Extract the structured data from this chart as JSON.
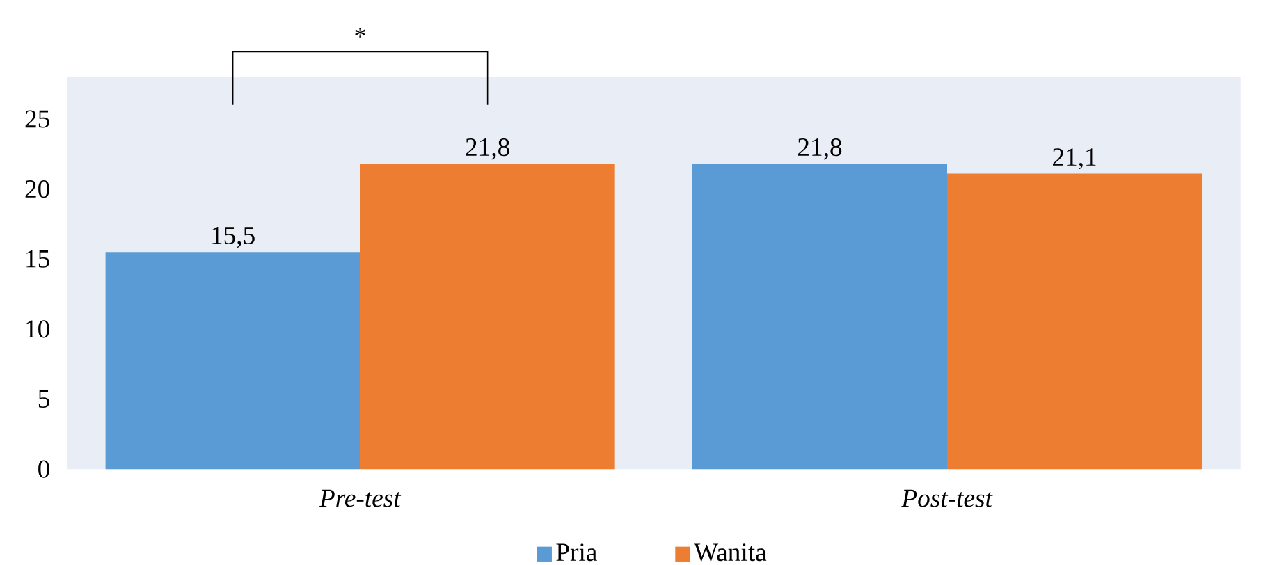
{
  "chart_data": {
    "type": "bar",
    "categories": [
      "*Pre-test*",
      "*Post-test*"
    ],
    "series": [
      {
        "name": "Pria",
        "color": "#5b9bd5",
        "values": [
          15.5,
          21.8
        ],
        "value_labels": [
          "15,5",
          "21,8"
        ]
      },
      {
        "name": "Wanita",
        "color": "#ed7d31",
        "values": [
          21.8,
          21.1
        ],
        "value_labels": [
          "21,8",
          "21,1"
        ]
      }
    ],
    "ylim": [
      0,
      28
    ],
    "yticks": [
      0,
      5,
      10,
      15,
      20,
      25
    ],
    "grid": false,
    "legend": "bottom",
    "annotations": [
      "*"
    ]
  }
}
